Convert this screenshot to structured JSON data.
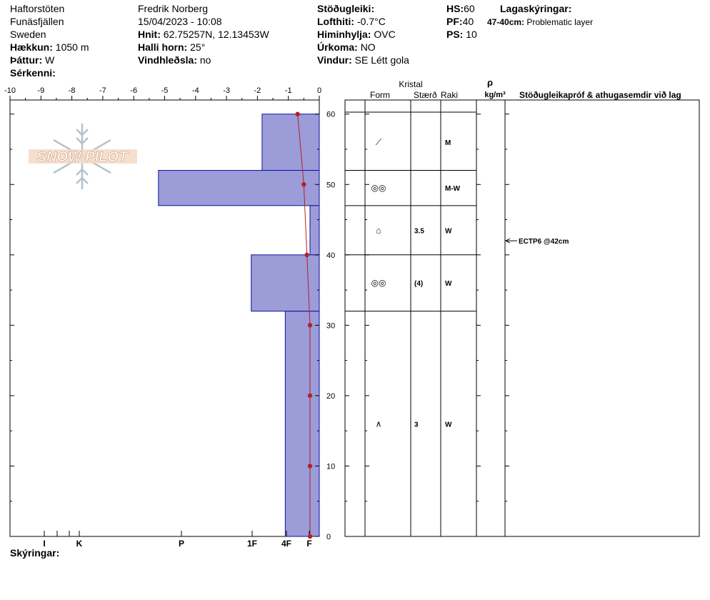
{
  "header": {
    "location": "Haftorstöten",
    "area": "Funäsfjällen",
    "country": "Sweden",
    "elevation_label": "Hækkun:",
    "elevation_value": "1050 m",
    "aspect_label": "Þáttur:",
    "aspect_value": "W",
    "features_label": "Sérkenni:",
    "observer": "Fredrik Norberg",
    "datetime": "15/04/2023 - 10:08",
    "coords_label": "Hnit:",
    "coords_value": "62.75257N, 12.13453W",
    "slope_label": "Halli horn:",
    "slope_value": "25°",
    "wind_loading_label": "Vindhleðsla:",
    "wind_loading_value": "no",
    "stability_label": "Stöðugleiki:",
    "air_temp_label": "Lofthiti:",
    "air_temp_value": "-0.7°C",
    "sky_label": "Himinhylja:",
    "sky_value": "OVC",
    "precip_label": "Úrkoma:",
    "precip_value": "NO",
    "wind_label": "Vindur:",
    "wind_value": "SE  Létt gola",
    "hs_label": "HS:",
    "hs_value": "60",
    "pf_label": "PF:",
    "pf_value": "40",
    "ps_label": "PS:",
    "ps_value": "10",
    "layer_notes_label": "Lagaskýringar:",
    "layer_note_range": "47-40cm:",
    "layer_note_text": "Problematic layer"
  },
  "logo_text": "SNOW PILOT",
  "footer": {
    "notes_label": "Skýringar:"
  },
  "table_headers": {
    "crystal": "Kristal",
    "form": "Form",
    "size": "Stærð",
    "moisture": "Raki",
    "rho": "ρ",
    "density_unit": "kg/m³",
    "tests": "Stöðugleikapróf & athugasemdir við lag"
  },
  "chart_data": {
    "type": "bar",
    "temp_axis": {
      "ticks": [
        -10,
        -9,
        -8,
        -7,
        -6,
        -5,
        -4,
        -3,
        -2,
        -1,
        0
      ],
      "range": [
        -10,
        0
      ]
    },
    "height_axis": {
      "ticks": [
        0,
        10,
        20,
        30,
        40,
        50,
        60
      ],
      "range": [
        0,
        62
      ]
    },
    "hardness_axis": {
      "labels": [
        "I",
        "K",
        "P",
        "1F",
        "4F",
        "F"
      ]
    },
    "hardness_layers": [
      {
        "top": 60,
        "bottom": 52,
        "temp_extent": -1.85
      },
      {
        "top": 52,
        "bottom": 47,
        "temp_extent": -5.2
      },
      {
        "top": 47,
        "bottom": 40,
        "temp_extent": -0.3
      },
      {
        "top": 40,
        "bottom": 32,
        "temp_extent": -2.2
      },
      {
        "top": 32,
        "bottom": 0,
        "temp_extent": -1.1
      }
    ],
    "temperature_profile": [
      {
        "height": 60,
        "temp": -0.7
      },
      {
        "height": 50,
        "temp": -0.5
      },
      {
        "height": 40,
        "temp": -0.4
      },
      {
        "height": 30,
        "temp": -0.3
      },
      {
        "height": 20,
        "temp": -0.3
      },
      {
        "height": 10,
        "temp": -0.3
      },
      {
        "height": 0,
        "temp": -0.3
      }
    ],
    "layers": [
      {
        "top": 60,
        "bottom": 52,
        "form": "⟋",
        "size": "",
        "moisture": "M"
      },
      {
        "top": 52,
        "bottom": 47,
        "form": "◎◎",
        "size": "",
        "moisture": "M-W"
      },
      {
        "top": 47,
        "bottom": 40,
        "form": "⌂",
        "size": "3.5",
        "moisture": "W"
      },
      {
        "top": 40,
        "bottom": 32,
        "form": "◎◎",
        "size": "(4)",
        "moisture": "W"
      },
      {
        "top": 32,
        "bottom": 0,
        "form": "∧",
        "size": "3",
        "moisture": "W"
      }
    ],
    "tests": [
      {
        "height": 42,
        "label": "ECTP6 @42cm"
      }
    ],
    "colors": {
      "hardness_fill": "#9c9cd9",
      "hardness_stroke": "#1010a0",
      "temp_line": "#b22222"
    }
  }
}
